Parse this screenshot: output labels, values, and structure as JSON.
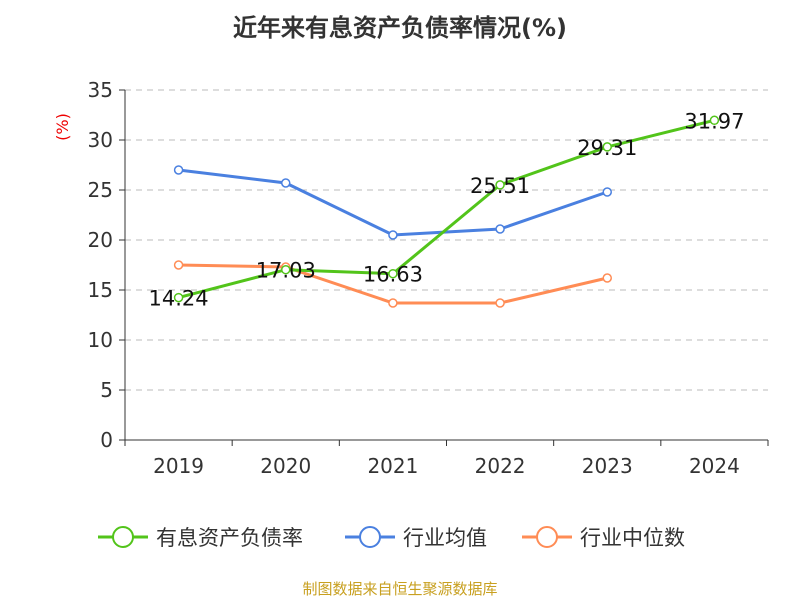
{
  "chart_data": {
    "type": "line",
    "title": "近年来有息资产负债率情况(%)",
    "ylabel": "(%)",
    "xlabel": "",
    "categories": [
      "2019",
      "2020",
      "2021",
      "2022",
      "2023",
      "2024"
    ],
    "ylim": [
      0,
      35
    ],
    "yticks": [
      0,
      5,
      10,
      15,
      20,
      25,
      30,
      35
    ],
    "grid": true,
    "legend_position": "bottom",
    "series": [
      {
        "name": "有息资产负债率",
        "color": "#52c41a",
        "values": [
          14.24,
          17.03,
          16.63,
          25.51,
          29.31,
          31.97
        ],
        "labels": [
          "14.24",
          "17.03",
          "16.63",
          "25.51",
          "29.31",
          "31.97"
        ]
      },
      {
        "name": "行业均值",
        "color": "#4a80e0",
        "values": [
          27.0,
          25.7,
          20.5,
          21.1,
          24.8,
          null
        ]
      },
      {
        "name": "行业中位数",
        "color": "#ff8c55",
        "values": [
          17.5,
          17.3,
          13.7,
          13.7,
          16.2,
          null
        ]
      }
    ]
  },
  "footer": "制图数据来自恒生聚源数据库"
}
